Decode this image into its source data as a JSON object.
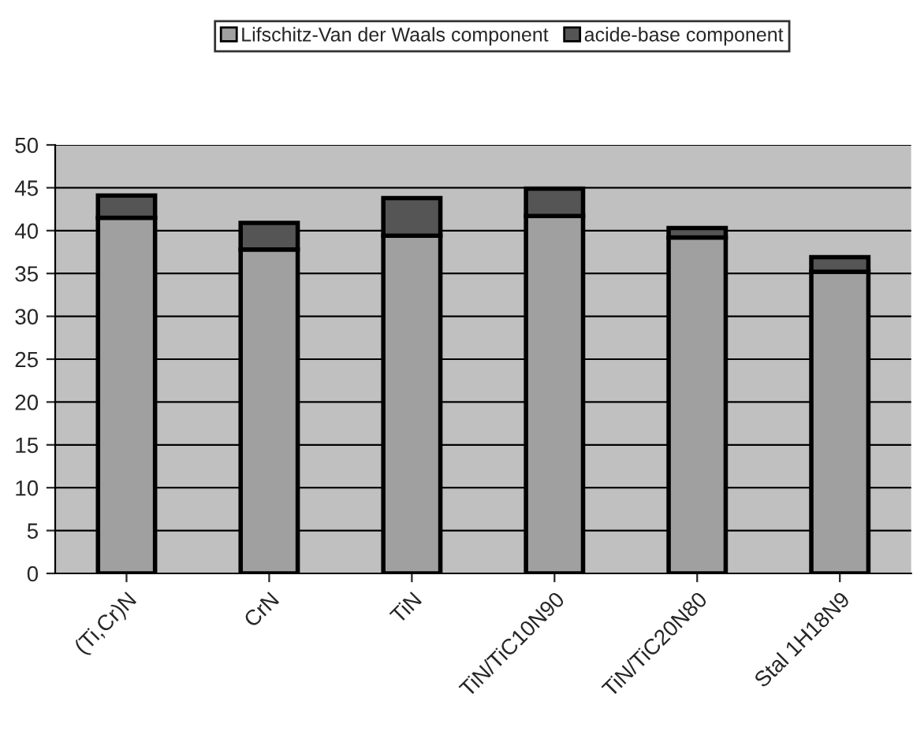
{
  "chart_data": {
    "type": "bar",
    "stacked": true,
    "categories": [
      "(Ti,Cr)N",
      "CrN",
      "TiN",
      "TiN/TiC10N90",
      "TiN/TiC20N80",
      "Stal 1H18N9"
    ],
    "series": [
      {
        "name": "Lifschitz-Van der Waals component",
        "color": "#a0a0a0",
        "values": [
          41.5,
          37.8,
          39.4,
          41.7,
          39.2,
          35.2
        ]
      },
      {
        "name": "acide-base component",
        "color": "#555555",
        "values": [
          2.6,
          3.1,
          4.4,
          3.2,
          1.1,
          1.7
        ]
      }
    ],
    "ylim": [
      0,
      50
    ],
    "yticks": [
      0,
      5,
      10,
      15,
      20,
      25,
      30,
      35,
      40,
      45,
      50
    ],
    "grid": "y",
    "legend": "top"
  }
}
